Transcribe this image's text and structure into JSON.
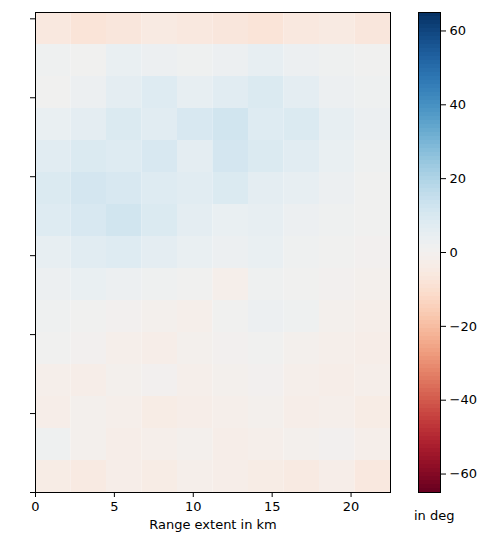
{
  "chart_data": {
    "type": "heatmap",
    "xlabel": "Range extent in km",
    "xlim": [
      0,
      22.5
    ],
    "xticks": [
      0,
      5,
      10,
      15,
      20
    ],
    "ylim": [
      0,
      30.4
    ],
    "yticks": [
      0,
      5,
      10,
      15,
      20,
      25,
      30
    ],
    "tick_labels": "x",
    "color": "rdbu",
    "cells": [
      [
        -6,
        -8,
        -7,
        -5,
        -6,
        -7,
        -8,
        -6,
        -5,
        -7
      ],
      [
        2,
        1,
        4,
        3,
        2,
        3,
        5,
        3,
        2,
        1
      ],
      [
        1,
        3,
        6,
        8,
        5,
        7,
        9,
        6,
        3,
        2
      ],
      [
        4,
        6,
        9,
        7,
        10,
        12,
        8,
        9,
        5,
        3
      ],
      [
        7,
        9,
        8,
        10,
        6,
        11,
        9,
        7,
        4,
        2
      ],
      [
        9,
        11,
        10,
        8,
        7,
        9,
        6,
        5,
        3,
        1
      ],
      [
        8,
        10,
        12,
        9,
        6,
        4,
        5,
        3,
        2,
        1
      ],
      [
        5,
        7,
        8,
        6,
        4,
        3,
        4,
        2,
        1,
        0
      ],
      [
        3,
        4,
        3,
        2,
        1,
        -2,
        2,
        1,
        0,
        -1
      ],
      [
        2,
        1,
        0,
        -1,
        -2,
        1,
        3,
        2,
        -1,
        -2
      ],
      [
        1,
        0,
        -2,
        -3,
        -1,
        0,
        1,
        -1,
        -2,
        -3
      ],
      [
        -2,
        -3,
        -1,
        0,
        -2,
        -1,
        0,
        -2,
        -3,
        -2
      ],
      [
        -3,
        -1,
        -2,
        -4,
        -3,
        -2,
        -1,
        -3,
        -2,
        -4
      ],
      [
        2,
        -1,
        -3,
        -2,
        -1,
        -3,
        -2,
        -1,
        0,
        -2
      ],
      [
        -4,
        -5,
        -3,
        -4,
        -2,
        -3,
        -4,
        -5,
        -3,
        -6
      ]
    ],
    "colorbar": {
      "label": "in deg",
      "range": [
        -65,
        65
      ],
      "ticks": [
        {
          "value": -60,
          "label": "−60"
        },
        {
          "value": -40,
          "label": "−40"
        },
        {
          "value": -20,
          "label": "−20"
        },
        0,
        20,
        40,
        60
      ]
    }
  }
}
